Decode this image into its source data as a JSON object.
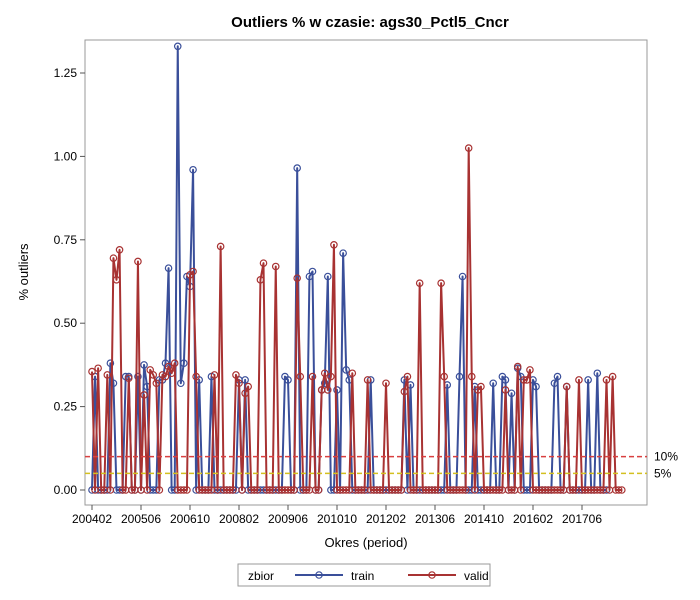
{
  "chart_data": {
    "type": "line",
    "title": "Outliers % w czasie: ags30_Pctl5_Cncr",
    "xlabel": "Okres (period)",
    "ylabel": "% outliers",
    "x_ticks": [
      "200402",
      "200506",
      "200610",
      "200802",
      "200906",
      "201010",
      "201202",
      "201306",
      "201410",
      "201602",
      "201706"
    ],
    "y_ticks": [
      "0.00",
      "0.25",
      "0.50",
      "0.75",
      "1.00",
      "1.25"
    ],
    "ylim": [
      -0.05,
      1.35
    ],
    "reference_lines": [
      {
        "value": 0.1,
        "label": "10%",
        "color": "#d94040",
        "style": "dashed"
      },
      {
        "value": 0.05,
        "label": "5%",
        "color": "#d4c020",
        "style": "dashed"
      }
    ],
    "legend": {
      "title": "zbior",
      "placement": "bottom",
      "entries": [
        "train",
        "valid"
      ]
    },
    "series": [
      {
        "name": "train",
        "color": "#3a4f9a",
        "values": [
          0,
          0.34,
          0,
          0,
          0,
          0,
          0.38,
          0.32,
          0,
          0,
          0,
          0.34,
          0.34,
          0,
          0,
          0.34,
          0,
          0.375,
          0.31,
          0,
          0,
          0,
          0.33,
          0.33,
          0.38,
          0.665,
          0,
          0,
          1.33,
          0.32,
          0.38,
          0.64,
          0.61,
          0.96,
          0,
          0.33,
          0,
          0,
          0,
          0.34,
          0,
          0,
          0,
          0,
          0,
          0,
          0,
          0,
          0.33,
          0,
          0.33,
          0,
          0,
          0,
          0,
          0,
          0,
          0,
          0,
          0,
          0,
          0,
          0,
          0.34,
          0.33,
          0,
          0,
          0.965,
          0,
          0,
          0,
          0.64,
          0.655,
          0,
          0,
          0.3,
          0.32,
          0.64,
          0,
          0,
          0.3,
          0,
          0.71,
          0.36,
          0.33,
          0,
          0,
          0,
          0,
          0,
          0,
          0.33,
          0,
          0,
          0,
          0,
          0,
          0,
          0,
          0,
          0,
          0,
          0.33,
          0,
          0.315,
          0,
          0,
          0,
          0,
          0,
          0,
          0,
          0,
          0,
          0,
          0,
          0.315,
          0,
          0,
          0,
          0.34,
          0.64,
          0,
          0,
          0,
          0.31,
          0,
          0,
          0,
          0,
          0,
          0.32,
          0,
          0,
          0.34,
          0.33,
          0,
          0.29,
          0,
          0.365,
          0.34,
          0,
          0,
          0,
          0.33,
          0.31,
          0,
          0,
          0,
          0,
          0,
          0.32,
          0.34,
          0,
          0,
          0.31,
          0,
          0,
          0,
          0,
          0,
          0,
          0.33,
          0,
          0,
          0.35,
          0,
          0,
          0
        ],
        "x_start": "200402"
      },
      {
        "name": "valid",
        "color": "#a83232",
        "values": [
          0.355,
          0,
          0.365,
          0,
          0,
          0.345,
          0,
          0.695,
          0.63,
          0.72,
          0,
          0,
          0.335,
          0,
          0,
          0.685,
          0,
          0.285,
          0,
          0.36,
          0.345,
          0.32,
          0,
          0.345,
          0.34,
          0.37,
          0.35,
          0.38,
          0,
          0,
          0,
          0,
          0.645,
          0.655,
          0.34,
          0,
          0,
          0,
          0,
          0,
          0.345,
          0,
          0.73,
          0,
          0,
          0,
          0,
          0.345,
          0.32,
          0,
          0.29,
          0.31,
          0,
          0,
          0,
          0.63,
          0.68,
          0,
          0,
          0,
          0.67,
          0,
          0,
          0,
          0,
          0,
          0,
          0.635,
          0.34,
          0,
          0,
          0,
          0.34,
          0,
          0,
          0.3,
          0.35,
          0.3,
          0.34,
          0.735,
          0,
          0,
          0,
          0,
          0,
          0.35,
          0,
          0,
          0,
          0,
          0.33,
          0,
          0,
          0,
          0,
          0,
          0.32,
          0,
          0,
          0,
          0,
          0,
          0.295,
          0.34,
          0,
          0,
          0,
          0.62,
          0,
          0,
          0,
          0,
          0,
          0,
          0.62,
          0.34,
          0,
          0,
          0,
          0,
          0,
          0,
          0,
          1.025,
          0.34,
          0,
          0.3,
          0.31,
          0,
          0,
          0,
          0,
          0,
          0,
          0,
          0.3,
          0,
          0,
          0,
          0.37,
          0,
          0.33,
          0.33,
          0.36,
          0,
          0,
          0,
          0,
          0,
          0,
          0,
          0,
          0,
          0,
          0,
          0.31,
          0,
          0,
          0,
          0.33,
          0,
          0,
          0,
          0,
          0,
          0,
          0,
          0,
          0.33,
          0,
          0.34,
          0,
          0,
          0
        ],
        "x_start": "200402"
      }
    ]
  }
}
